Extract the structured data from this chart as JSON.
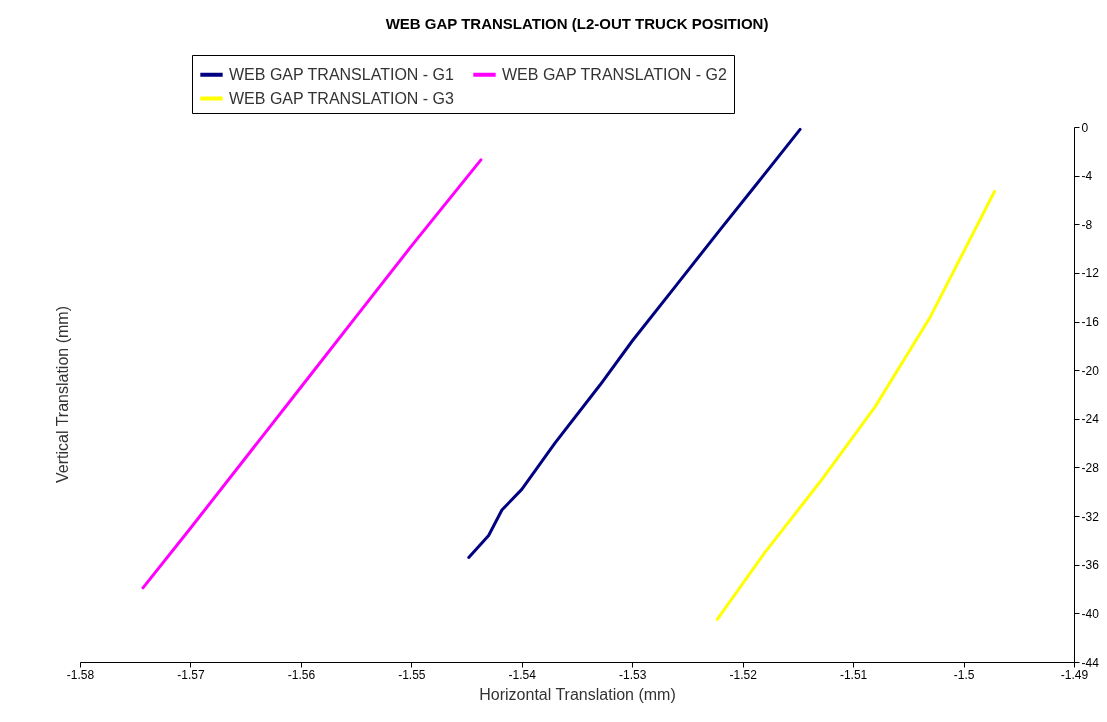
{
  "chart_data": {
    "type": "line",
    "title": "WEB GAP TRANSLATION (L2-OUT  TRUCK POSITION)",
    "xlabel": "Horizontal Translation (mm)",
    "ylabel": "Vertical Translation (mm)",
    "xlim": [
      -1.58,
      -1.49
    ],
    "xticks": [
      -1.58,
      -1.57,
      -1.56,
      -1.55,
      -1.54,
      -1.53,
      -1.52,
      -1.51,
      -1.5,
      -1.49
    ],
    "ylim": [
      -44,
      0
    ],
    "yticks": [
      -44,
      -40,
      -36,
      -32,
      -28,
      -24,
      -20,
      -16,
      -12,
      -8,
      -4,
      0
    ],
    "grid": false,
    "legend": "top",
    "marker": "none",
    "line_style": "solid",
    "series": [
      {
        "name": "WEB GAP TRANSLATION - G1",
        "color": "#000080",
        "x": [
          -1.5448,
          -1.543,
          -1.5418,
          -1.54,
          -1.537,
          -1.5329,
          -1.53,
          -1.526,
          -1.522,
          -1.519,
          -1.5148
        ],
        "values": [
          -35.4,
          -33.6,
          -31.5,
          -29.8,
          -26.0,
          -21.2,
          -17.6,
          -13.0,
          -8.4,
          -5.0,
          -0.2
        ]
      },
      {
        "name": "WEB GAP TRANSLATION - G2",
        "color": "#ff00ff",
        "x": [
          -1.5743,
          -1.57,
          -1.565,
          -1.56,
          -1.555,
          -1.55,
          -1.5437
        ],
        "values": [
          -37.9,
          -33.0,
          -27.2,
          -21.4,
          -15.6,
          -9.8,
          -2.7
        ]
      },
      {
        "name": "WEB GAP TRANSLATION - G3",
        "color": "#ffff00",
        "x": [
          -1.5223,
          -1.518,
          -1.513,
          -1.508,
          -1.503,
          -1.4972
        ],
        "values": [
          -40.5,
          -35.0,
          -29.2,
          -23.0,
          -15.6,
          -5.3
        ]
      }
    ]
  }
}
